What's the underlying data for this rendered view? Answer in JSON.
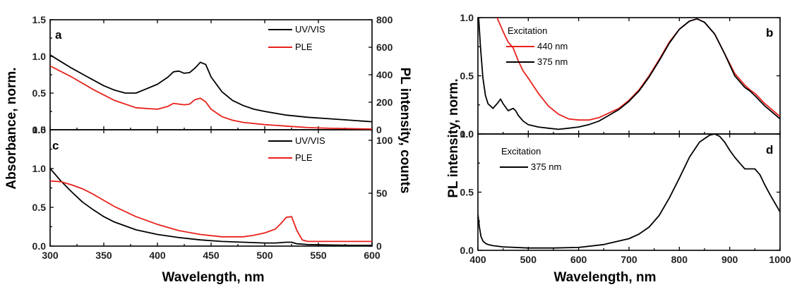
{
  "chart_data": [
    {
      "type": "line",
      "panel": "a",
      "xlabel": "Wavelength, nm",
      "ylabel": "Absorbance, norm.",
      "ylabel_right": "PL intensity, counts",
      "xlim": [
        300,
        600
      ],
      "ylim": [
        0,
        1.5
      ],
      "ylim_right": [
        0,
        800
      ],
      "xticks": [
        "300",
        "350",
        "400",
        "450",
        "500",
        "550",
        "600"
      ],
      "yticks": [
        "0.0",
        "0.5",
        "1.0",
        "1.5"
      ],
      "yticks_right": [
        "0",
        "200",
        "400",
        "600",
        "800"
      ],
      "legend_position": "top-right",
      "series": [
        {
          "name": "UV/VIS",
          "color": "#000000",
          "x": [
            300,
            310,
            320,
            330,
            340,
            350,
            360,
            370,
            380,
            390,
            400,
            410,
            415,
            420,
            425,
            430,
            435,
            440,
            445,
            450,
            460,
            470,
            480,
            490,
            500,
            520,
            540,
            560,
            580,
            600
          ],
          "y": [
            1.02,
            0.93,
            0.84,
            0.76,
            0.68,
            0.6,
            0.54,
            0.5,
            0.5,
            0.56,
            0.62,
            0.72,
            0.79,
            0.8,
            0.77,
            0.78,
            0.84,
            0.92,
            0.89,
            0.72,
            0.52,
            0.4,
            0.33,
            0.28,
            0.25,
            0.2,
            0.17,
            0.15,
            0.13,
            0.11
          ]
        },
        {
          "name": "PLE",
          "color": "#e8211c",
          "x": [
            300,
            320,
            340,
            360,
            380,
            400,
            410,
            415,
            420,
            425,
            430,
            435,
            440,
            445,
            450,
            460,
            470,
            480,
            500,
            520,
            540,
            560,
            580,
            600
          ],
          "y": [
            0.87,
            0.72,
            0.55,
            0.4,
            0.3,
            0.28,
            0.32,
            0.36,
            0.35,
            0.34,
            0.35,
            0.41,
            0.43,
            0.38,
            0.28,
            0.18,
            0.13,
            0.1,
            0.07,
            0.05,
            0.03,
            0.02,
            0.015,
            0.01
          ]
        }
      ]
    },
    {
      "type": "line",
      "panel": "c",
      "xlabel": "Wavelength, nm",
      "ylabel": "Absorbance, norm.",
      "ylabel_right": "PL intensity, counts",
      "xlim": [
        300,
        600
      ],
      "ylim": [
        0,
        1.5
      ],
      "ylim_right": [
        0,
        110
      ],
      "xticks": [
        "300",
        "350",
        "400",
        "450",
        "500",
        "550",
        "600"
      ],
      "yticks": [
        "0.0",
        "0.5",
        "1.0",
        "1.5"
      ],
      "yticks_right": [
        "0",
        "50",
        "100"
      ],
      "legend_position": "top-right",
      "series": [
        {
          "name": "UV/VIS",
          "color": "#000000",
          "x": [
            300,
            310,
            320,
            330,
            340,
            350,
            360,
            380,
            400,
            420,
            440,
            460,
            480,
            500,
            510,
            520,
            525,
            530,
            540,
            560,
            580,
            600
          ],
          "y": [
            1.0,
            0.84,
            0.7,
            0.57,
            0.47,
            0.38,
            0.31,
            0.21,
            0.15,
            0.11,
            0.08,
            0.06,
            0.05,
            0.04,
            0.04,
            0.05,
            0.05,
            0.03,
            0.02,
            0.015,
            0.01,
            0.01
          ]
        },
        {
          "name": "PLE",
          "color": "#e8211c",
          "x": [
            300,
            310,
            320,
            330,
            340,
            350,
            360,
            380,
            400,
            420,
            440,
            460,
            480,
            490,
            500,
            510,
            515,
            520,
            525,
            530,
            535,
            540,
            560,
            580,
            600
          ],
          "y": [
            0.84,
            0.83,
            0.79,
            0.74,
            0.67,
            0.59,
            0.51,
            0.38,
            0.28,
            0.2,
            0.15,
            0.12,
            0.12,
            0.14,
            0.17,
            0.22,
            0.29,
            0.37,
            0.38,
            0.2,
            0.08,
            0.06,
            0.06,
            0.06,
            0.06
          ]
        }
      ]
    },
    {
      "type": "line",
      "panel": "b",
      "xlabel": "Wavelength, nm",
      "ylabel": "PL intensity, norm.",
      "xlim": [
        400,
        1000
      ],
      "ylim": [
        0,
        1.0
      ],
      "xticks": [
        "400",
        "500",
        "600",
        "700",
        "800",
        "900",
        "1000"
      ],
      "yticks": [
        "0.0",
        "0.5",
        "1.0"
      ],
      "legend_title": "Excitation",
      "legend_position": "top-left",
      "series": [
        {
          "name": "440 nm",
          "color": "#e8211c",
          "x": [
            432,
            440,
            450,
            460,
            470,
            480,
            490,
            500,
            520,
            540,
            560,
            580,
            600,
            620,
            640,
            660,
            680,
            700,
            720,
            740,
            760,
            780,
            800,
            820,
            835,
            850,
            870,
            890,
            910,
            930,
            940,
            950,
            970,
            1000
          ],
          "y": [
            1.08,
            0.98,
            0.88,
            0.79,
            0.74,
            0.63,
            0.54,
            0.48,
            0.35,
            0.24,
            0.17,
            0.13,
            0.12,
            0.12,
            0.14,
            0.18,
            0.22,
            0.29,
            0.38,
            0.5,
            0.64,
            0.79,
            0.9,
            0.97,
            0.99,
            0.96,
            0.86,
            0.69,
            0.52,
            0.42,
            0.38,
            0.35,
            0.26,
            0.15
          ]
        },
        {
          "name": "375 nm",
          "color": "#000000",
          "x": [
            400,
            405,
            410,
            415,
            420,
            430,
            440,
            445,
            450,
            460,
            470,
            475,
            480,
            490,
            500,
            520,
            540,
            560,
            580,
            600,
            620,
            640,
            660,
            680,
            700,
            720,
            740,
            760,
            780,
            800,
            820,
            835,
            850,
            870,
            890,
            910,
            930,
            940,
            950,
            970,
            1000
          ],
          "y": [
            1.1,
            0.75,
            0.48,
            0.33,
            0.26,
            0.22,
            0.27,
            0.3,
            0.26,
            0.2,
            0.22,
            0.2,
            0.16,
            0.11,
            0.08,
            0.06,
            0.05,
            0.04,
            0.05,
            0.06,
            0.08,
            0.11,
            0.16,
            0.21,
            0.28,
            0.37,
            0.49,
            0.63,
            0.78,
            0.9,
            0.97,
            0.99,
            0.96,
            0.86,
            0.69,
            0.5,
            0.4,
            0.37,
            0.33,
            0.24,
            0.13
          ]
        }
      ]
    },
    {
      "type": "line",
      "panel": "d",
      "xlabel": "Wavelength, nm",
      "ylabel": "PL intensity, norm.",
      "xlim": [
        400,
        1000
      ],
      "ylim": [
        0,
        1.0
      ],
      "xticks": [
        "400",
        "500",
        "600",
        "700",
        "800",
        "900",
        "1000"
      ],
      "yticks": [
        "0.0",
        "0.5",
        "1.0"
      ],
      "legend_title": "Excitation",
      "legend_position": "top-left",
      "series": [
        {
          "name": "375 nm",
          "color": "#000000",
          "x": [
            400,
            403,
            406,
            410,
            415,
            420,
            430,
            450,
            500,
            550,
            600,
            650,
            700,
            720,
            740,
            760,
            780,
            800,
            820,
            840,
            860,
            870,
            880,
            890,
            900,
            910,
            920,
            930,
            940,
            950,
            960,
            970,
            980,
            1000
          ],
          "y": [
            0.31,
            0.2,
            0.12,
            0.08,
            0.06,
            0.05,
            0.04,
            0.03,
            0.02,
            0.02,
            0.025,
            0.05,
            0.1,
            0.14,
            0.2,
            0.3,
            0.45,
            0.62,
            0.8,
            0.93,
            0.99,
            1.0,
            0.98,
            0.93,
            0.86,
            0.8,
            0.75,
            0.7,
            0.7,
            0.7,
            0.65,
            0.56,
            0.48,
            0.33
          ]
        }
      ]
    }
  ]
}
